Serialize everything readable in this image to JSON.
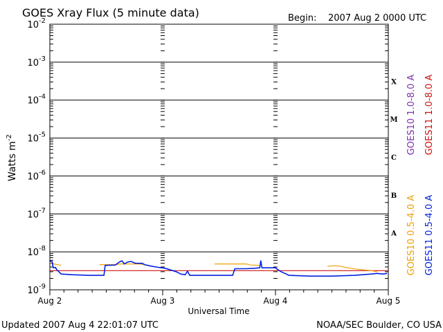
{
  "header": {
    "title": "GOES Xray Flux (5 minute data)",
    "begin_label": "Begin:",
    "begin_value": "2007 Aug 2 0000 UTC"
  },
  "footer": {
    "updated": "Updated 2007 Aug  4 22:01:07 UTC",
    "credit": "NOAA/SEC Boulder, CO USA"
  },
  "chart_data": {
    "type": "line",
    "title": "GOES Xray Flux (5 minute data)",
    "xlabel": "Universal Time",
    "ylabel_base": "Watts m",
    "ylabel_exp": "-2",
    "y_scale": "log",
    "ylim_exp": [
      -9,
      -2
    ],
    "xlim_days": [
      0,
      3
    ],
    "x_ticks": [
      {
        "day": 0,
        "label": "Aug 2"
      },
      {
        "day": 1,
        "label": "Aug 3"
      },
      {
        "day": 2,
        "label": "Aug 4"
      },
      {
        "day": 3,
        "label": "Aug 5"
      }
    ],
    "y_ticks": [
      {
        "exp": -2,
        "base": "10",
        "sup": "-2"
      },
      {
        "exp": -3,
        "base": "10",
        "sup": "-3"
      },
      {
        "exp": -4,
        "base": "10",
        "sup": "-4"
      },
      {
        "exp": -5,
        "base": "10",
        "sup": "-5"
      },
      {
        "exp": -6,
        "base": "10",
        "sup": "-6"
      },
      {
        "exp": -7,
        "base": "10",
        "sup": "-7"
      },
      {
        "exp": -8,
        "base": "10",
        "sup": "-8"
      },
      {
        "exp": -9,
        "base": "10",
        "sup": "-9"
      }
    ],
    "flare_classes": [
      {
        "label": "X",
        "exp": -3.5
      },
      {
        "label": "M",
        "exp": -4.5
      },
      {
        "label": "C",
        "exp": -5.5
      },
      {
        "label": "B",
        "exp": -6.5
      },
      {
        "label": "A",
        "exp": -7.5
      }
    ],
    "legend": {
      "long": [
        {
          "name": "GOES10 1.0-8.0 A",
          "color": "#7b2fb0"
        },
        {
          "name": "GOES11 1.0-8.0 A",
          "color": "#d01010"
        }
      ],
      "short": [
        {
          "name": "GOES10 0.5-4.0 A",
          "color": "#f0a000"
        },
        {
          "name": "GOES11 0.5-4.0 A",
          "color": "#0020e0"
        }
      ]
    },
    "series": [
      {
        "name": "GOES11 1.0-8.0 A",
        "color": "#d01010",
        "points": [
          [
            0.0,
            3.2e-09
          ],
          [
            3.0,
            3.2e-09
          ]
        ]
      },
      {
        "name": "GOES10 0.5-4.0 A",
        "color": "#f0a000",
        "segments": [
          [
            [
              0.0,
              5e-09
            ],
            [
              0.07,
              4.6e-09
            ],
            [
              0.1,
              4.4e-09
            ]
          ],
          [
            [
              0.44,
              4.6e-09
            ],
            [
              0.58,
              4.6e-09
            ],
            [
              0.62,
              4.8e-09
            ],
            [
              0.8,
              4.8e-09
            ],
            [
              0.9,
              4.2e-09
            ],
            [
              0.98,
              3.8e-09
            ]
          ],
          [
            [
              1.46,
              4.8e-09
            ],
            [
              1.74,
              4.8e-09
            ],
            [
              1.78,
              4.5e-09
            ],
            [
              1.86,
              4.4e-09
            ]
          ],
          [
            [
              2.46,
              4.2e-09
            ],
            [
              2.55,
              4.3e-09
            ],
            [
              2.62,
              3.9e-09
            ],
            [
              2.72,
              3.5e-09
            ],
            [
              2.85,
              3.2e-09
            ],
            [
              2.9,
              3e-09
            ]
          ]
        ]
      },
      {
        "name": "GOES11 0.5-4.0 A",
        "color": "#0020e0",
        "points": [
          [
            0.0,
            5.8e-09
          ],
          [
            0.02,
            5.5e-09
          ],
          [
            0.03,
            3.8e-09
          ],
          [
            0.05,
            3.9e-09
          ],
          [
            0.06,
            3.4e-09
          ],
          [
            0.08,
            3e-09
          ],
          [
            0.1,
            2.6e-09
          ],
          [
            0.2,
            2.5e-09
          ],
          [
            0.35,
            2.4e-09
          ],
          [
            0.48,
            2.4e-09
          ],
          [
            0.49,
            4.4e-09
          ],
          [
            0.58,
            4.5e-09
          ],
          [
            0.62,
            5.5e-09
          ],
          [
            0.64,
            5.8e-09
          ],
          [
            0.66,
            4.8e-09
          ],
          [
            0.69,
            5.4e-09
          ],
          [
            0.72,
            5.6e-09
          ],
          [
            0.76,
            5e-09
          ],
          [
            0.82,
            5e-09
          ],
          [
            0.84,
            4.6e-09
          ],
          [
            0.9,
            4.2e-09
          ],
          [
            0.94,
            4e-09
          ],
          [
            1.02,
            3.7e-09
          ],
          [
            1.12,
            3e-09
          ],
          [
            1.16,
            2.6e-09
          ],
          [
            1.2,
            2.5e-09
          ],
          [
            1.22,
            3.1e-09
          ],
          [
            1.24,
            2.4e-09
          ],
          [
            1.35,
            2.4e-09
          ],
          [
            1.5,
            2.4e-09
          ],
          [
            1.62,
            2.4e-09
          ],
          [
            1.64,
            3.6e-09
          ],
          [
            1.74,
            3.6e-09
          ],
          [
            1.82,
            3.7e-09
          ],
          [
            1.86,
            3.8e-09
          ],
          [
            1.87,
            5.8e-09
          ],
          [
            1.88,
            3.8e-09
          ],
          [
            2.0,
            3.8e-09
          ],
          [
            2.02,
            3.4e-09
          ],
          [
            2.05,
            3e-09
          ],
          [
            2.12,
            2.4e-09
          ],
          [
            2.3,
            2.3e-09
          ],
          [
            2.5,
            2.3e-09
          ],
          [
            2.7,
            2.4e-09
          ],
          [
            2.85,
            2.6e-09
          ],
          [
            2.9,
            2.7e-09
          ],
          [
            2.95,
            2.6e-09
          ],
          [
            2.99,
            2.7e-09
          ]
        ]
      }
    ]
  }
}
